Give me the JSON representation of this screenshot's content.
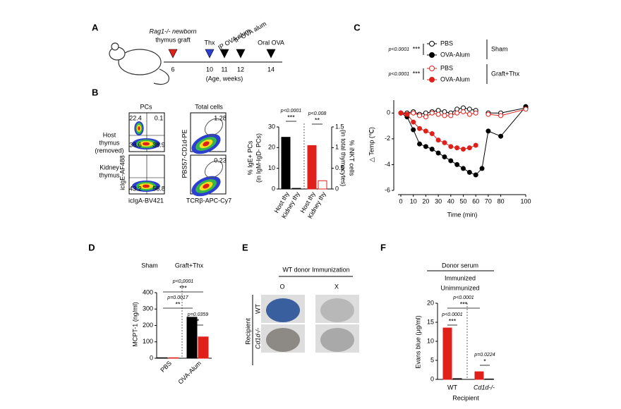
{
  "panels": {
    "A": {
      "letter": "A",
      "graft_line1": "Rag1-/- newborn",
      "graft_line2": "thymus graft",
      "events": [
        {
          "label": "Thx",
          "color": "#2b3fd1"
        },
        {
          "label": "IP OVA alum",
          "color": "#000"
        },
        {
          "label": "IP OVA alum",
          "color": "#000"
        },
        {
          "label": "Oral OVA",
          "color": "#000"
        }
      ],
      "graft_color": "#e0201b",
      "weeks": [
        6,
        10,
        11,
        12,
        14
      ],
      "axis_label": "(Age, weeks)"
    },
    "B": {
      "letter": "B",
      "col_titles": [
        "PCs",
        "Total cells"
      ],
      "row_labels": [
        [
          "Host",
          "thymus",
          "(removed)"
        ],
        [
          "Kidney",
          "thymus"
        ]
      ],
      "pc_axes": {
        "y": "icIgE-AF488",
        "x": "icIgA-BV421"
      },
      "total_axes": {
        "y": "PBS57-CD1d-PE",
        "x": "TCRβ-APC-Cy7"
      },
      "quadrants_host": [
        "22.4",
        "0.1",
        "38.6",
        "38.9"
      ],
      "quadrants_kidney": [
        "43.2",
        "56.8"
      ],
      "gates": [
        "1.28",
        "0.23"
      ]
    },
    "E": {
      "letter": "E",
      "title": "WT donor Immunization",
      "columns": [
        "O",
        "X"
      ],
      "row_title": "Recipient",
      "rows": [
        "WT",
        "Cd1d-/-"
      ]
    }
  },
  "chart_data": [
    {
      "type": "bar",
      "panel": "B",
      "categories": [
        "Host thy",
        "Kidney thy"
      ],
      "ylabel": [
        "% IgE+ PCs",
        "(in IgM-IgD- PCs)"
      ],
      "y2label": [
        "% iNKT cells",
        "(in total thymocytes)"
      ],
      "ylim": [
        0,
        30
      ],
      "yticks": [
        0,
        10,
        20,
        30
      ],
      "y2lim": [
        0,
        1.5
      ],
      "y2ticks": [
        0,
        0.5,
        1.0,
        1.5
      ],
      "series": [
        {
          "name": "IgE",
          "colors": [
            "#000",
            "#fff"
          ],
          "values": [
            25,
            0.3
          ]
        },
        {
          "name": "iNKT",
          "axis": "y2",
          "colors": [
            "#e0201b",
            "#fff"
          ],
          "values": [
            1.05,
            0.2
          ]
        }
      ],
      "annotations": [
        {
          "p": "p<0.0001",
          "stars": "***"
        },
        {
          "p": "p<0.008",
          "stars": "**"
        }
      ]
    },
    {
      "type": "line",
      "panel": "C",
      "letter": "C",
      "x": [
        0,
        5,
        10,
        15,
        20,
        25,
        30,
        35,
        40,
        45,
        50,
        55,
        60,
        65,
        70,
        80,
        100
      ],
      "xlim": [
        0,
        100
      ],
      "xticks": [
        0,
        10,
        20,
        30,
        40,
        50,
        60,
        70,
        80,
        100
      ],
      "ylim": [
        -6,
        1
      ],
      "yticks": [
        -6,
        -4,
        -2,
        0
      ],
      "xlabel": "Time (min)",
      "ylabel": "△ Temp (℃)",
      "groups": [
        {
          "label": "Sham",
          "p": "p<0.0001",
          "stars": "***"
        },
        {
          "label": "Graft+Thx",
          "p": "p<0.0001",
          "stars": "***"
        }
      ],
      "series": [
        {
          "name": "PBS",
          "color": "#000",
          "marker": "open",
          "values": [
            0,
            0,
            0.1,
            -0.1,
            0,
            0.1,
            0.2,
            0.1,
            0,
            0.3,
            0.4,
            0.3,
            0.2,
            null,
            0,
            0,
            0.4
          ]
        },
        {
          "name": "OVA-Alum",
          "color": "#000",
          "marker": "filled",
          "values": [
            0,
            -0.3,
            -1.3,
            -2.4,
            -2.6,
            -2.8,
            -3.1,
            -3.4,
            -3.7,
            -4.0,
            -4.3,
            -4.6,
            -4.8,
            -4.3,
            -1.4,
            -1.8,
            0.5
          ]
        },
        {
          "name": "PBS",
          "color": "#e0201b",
          "marker": "open",
          "values": [
            0,
            -0.1,
            0,
            -0.2,
            -0.3,
            0,
            -0.1,
            -0.2,
            -0.2,
            0,
            0.1,
            -0.1,
            0,
            null,
            -0.1,
            -0.2,
            0.3
          ]
        },
        {
          "name": "OVA-Alum",
          "color": "#e0201b",
          "marker": "filled",
          "values": [
            0,
            -0.1,
            -0.7,
            -1.2,
            -1.4,
            -1.6,
            -2.1,
            -2.3,
            -2.6,
            -2.7,
            -2.8,
            -2.7,
            -2.5,
            null,
            null,
            null,
            null
          ]
        }
      ]
    },
    {
      "type": "bar",
      "panel": "D",
      "letter": "D",
      "categories": [
        "PBS",
        "OVA-Alum"
      ],
      "ylabel": "MCPT-1 (ng/ml)",
      "ylim": [
        0,
        400
      ],
      "yticks": [
        0,
        100,
        200,
        300,
        400
      ],
      "series": [
        {
          "name": "Sham",
          "color": "#000",
          "values": [
            3,
            250
          ]
        },
        {
          "name": "Graft+Thx",
          "color": "#e0201b",
          "values": [
            3,
            130
          ]
        }
      ],
      "annotations": [
        {
          "p": "p<0.0001",
          "stars": "***"
        },
        {
          "p": "p=0.0017",
          "stars": "**"
        },
        {
          "p": "p=0.0359",
          "stars": "*"
        }
      ]
    },
    {
      "type": "bar",
      "panel": "F",
      "letter": "F",
      "title": "Donor serum",
      "categories": [
        "WT",
        "Cd1d-/-"
      ],
      "ylabel": "Evans blue (μg/ml)",
      "xlabel": "Recipient",
      "ylim": [
        0,
        20
      ],
      "yticks": [
        0,
        5,
        10,
        15,
        20
      ],
      "series": [
        {
          "name": "Immunized",
          "color": "#e0201b",
          "values": [
            13.5,
            2
          ]
        },
        {
          "name": "Unimmunized",
          "color": "#fff",
          "values": [
            0.2,
            0.1
          ]
        }
      ],
      "annotations": [
        {
          "p": "p<0.0001",
          "stars": "***"
        },
        {
          "p": "p<0.0001",
          "stars": "***"
        },
        {
          "p": "p=0.0224",
          "stars": "*"
        }
      ]
    }
  ]
}
